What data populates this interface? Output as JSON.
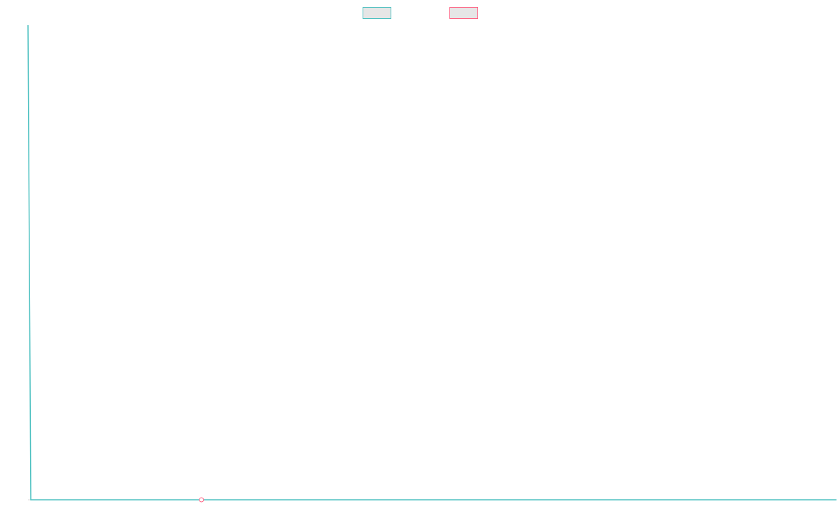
{
  "chart_data": {
    "type": "line",
    "series": [
      {
        "color": "#4bc0c0",
        "x": [
          0,
          1,
          289
        ],
        "values": [
          100,
          0,
          0
        ]
      },
      {
        "color": "#ff6384",
        "x": [
          62
        ],
        "values": [
          0
        ]
      }
    ],
    "xlim": [
      0,
      289
    ],
    "ylim": [
      0,
      100
    ],
    "legend": "top"
  }
}
